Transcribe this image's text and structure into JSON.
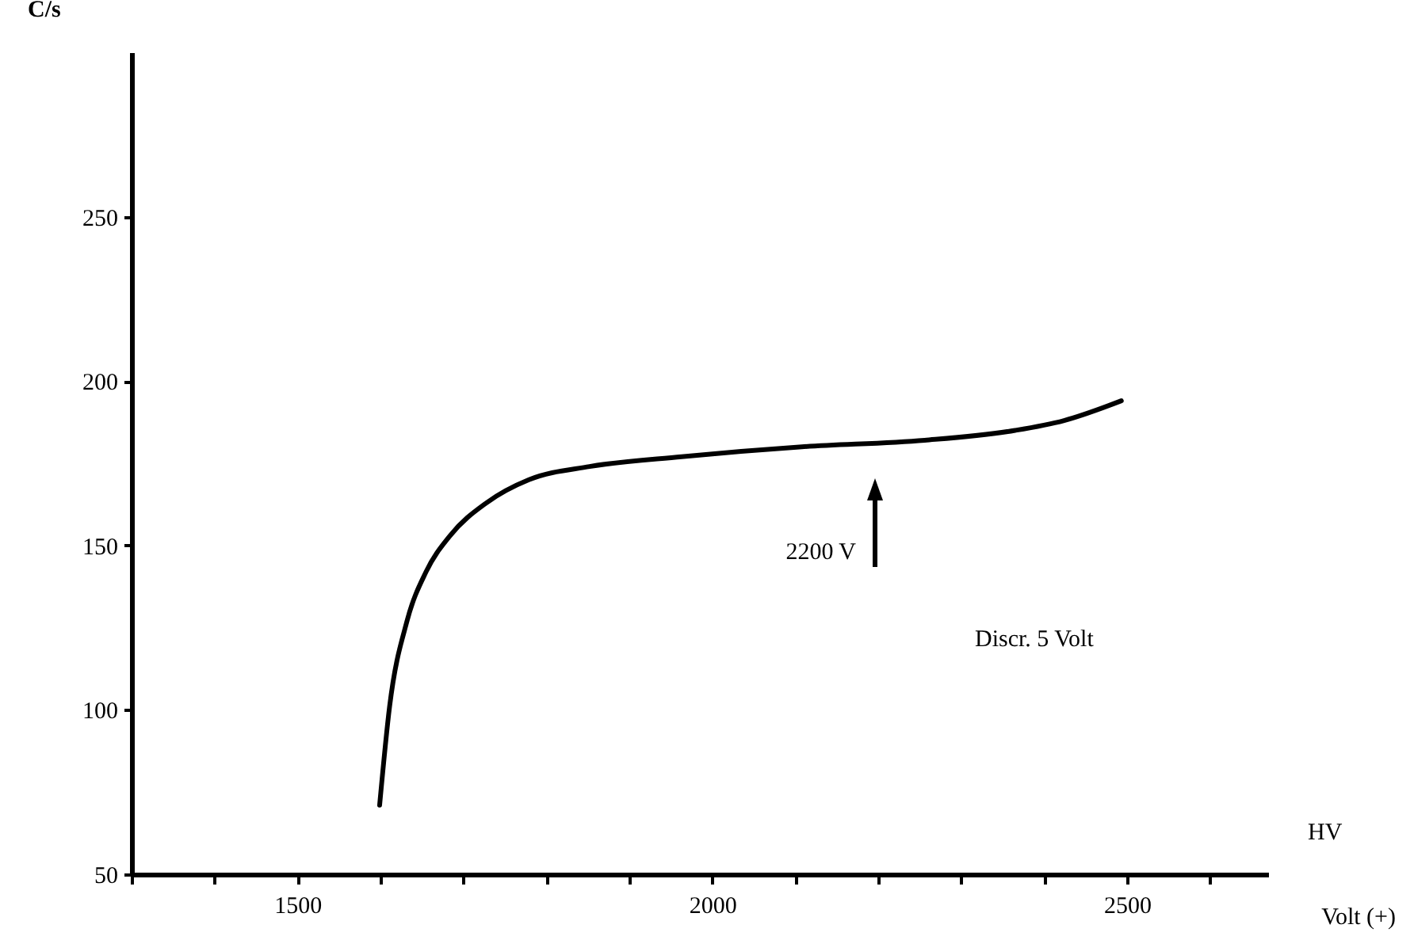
{
  "chart_data": {
    "type": "line",
    "ylabel": "C/s",
    "xlabel": "Volt (+)",
    "x": [
      1599,
      1611,
      1632,
      1655,
      1684,
      1728,
      1779,
      1852,
      1963,
      2108,
      2256,
      2365,
      2424,
      2493
    ],
    "series": [
      {
        "color": "#000000",
        "values": [
          71,
          101,
          127,
          142,
          153,
          163,
          170,
          174,
          177,
          180,
          182,
          185,
          188,
          194
        ]
      }
    ],
    "xlim": [
      1300,
      2670
    ],
    "xticks": [
      {
        "value": 1300,
        "label": null
      },
      {
        "value": 1400,
        "label": null
      },
      1500,
      {
        "value": 1600,
        "label": null
      },
      {
        "value": 1700,
        "label": null
      },
      {
        "value": 1800,
        "label": null
      },
      {
        "value": 1900,
        "label": null
      },
      2000,
      {
        "value": 2100,
        "label": null
      },
      {
        "value": 2200,
        "label": null
      },
      {
        "value": 2300,
        "label": null
      },
      {
        "value": 2400,
        "label": null
      },
      2500,
      {
        "value": 2600,
        "label": null
      }
    ],
    "ylim": [
      50,
      300
    ],
    "yticks": [
      50,
      100,
      150,
      200,
      250
    ],
    "grid": false,
    "marker": "none",
    "line_style": "solid",
    "annotations": [
      "2200 V",
      "Discr.   5 Volt",
      "HV"
    ]
  }
}
